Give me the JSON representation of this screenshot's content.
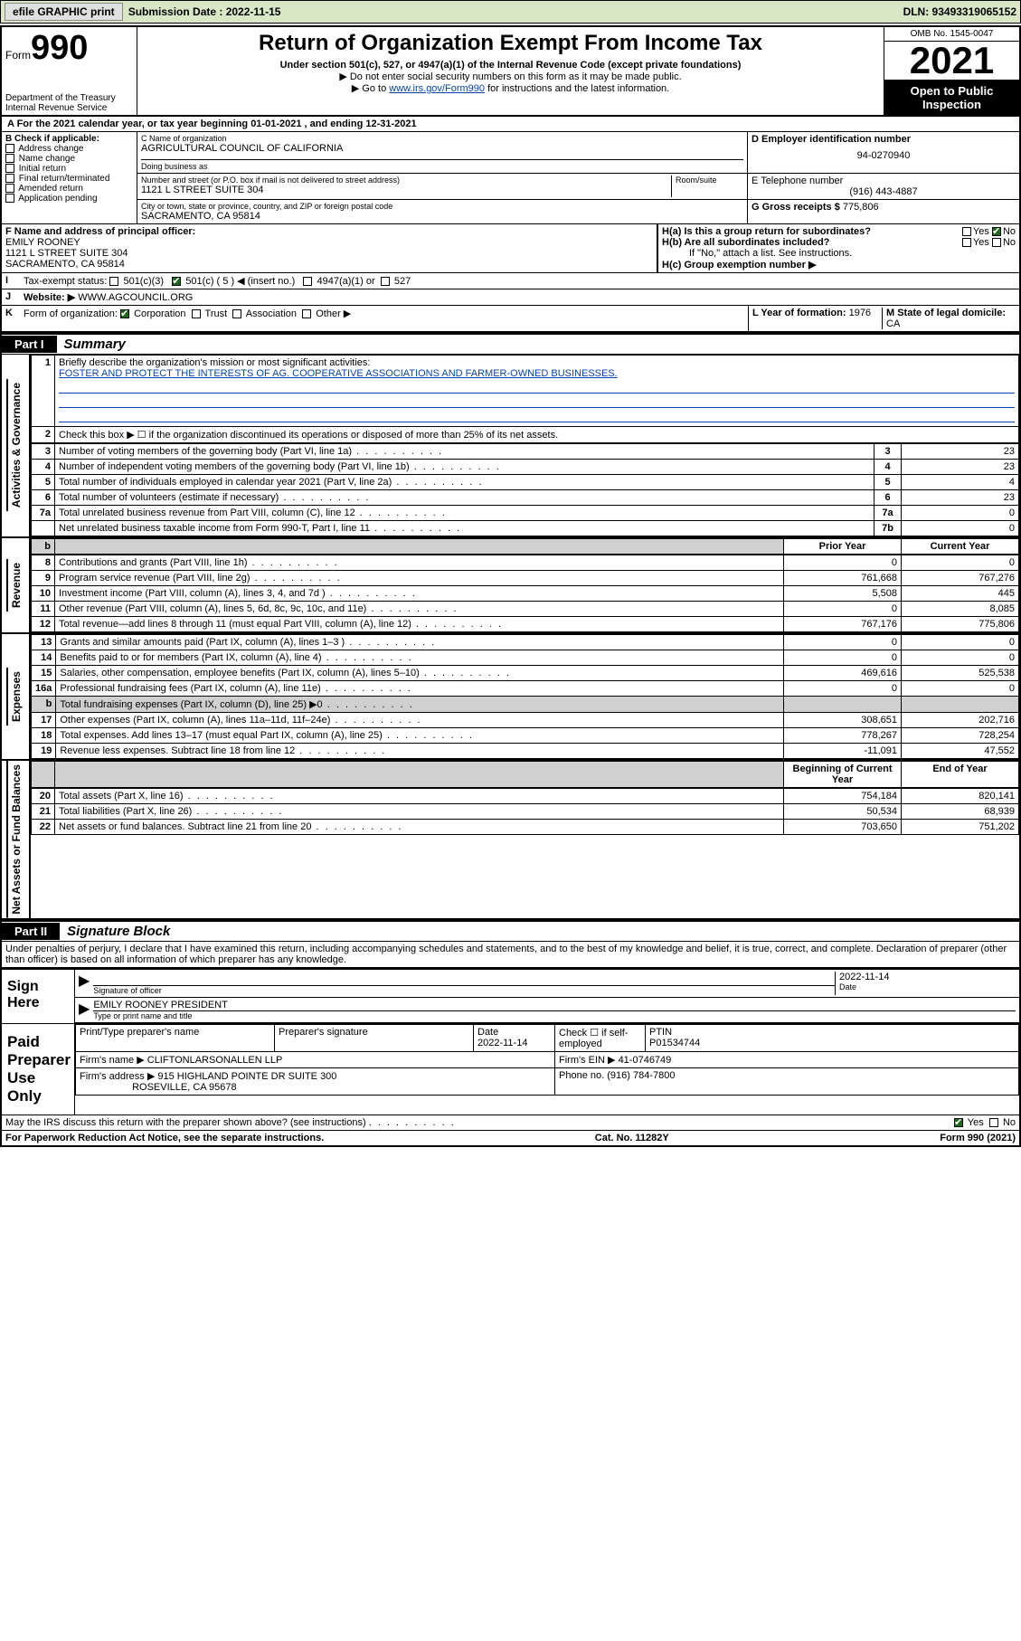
{
  "topbar": {
    "efile_label": "efile GRAPHIC print",
    "submission_label": "Submission Date : 2022-11-15",
    "dln": "DLN: 93493319065152"
  },
  "header": {
    "form_prefix": "Form",
    "form_no": "990",
    "dept": "Department of the Treasury",
    "irs": "Internal Revenue Service",
    "title": "Return of Organization Exempt From Income Tax",
    "subtitle": "Under section 501(c), 527, or 4947(a)(1) of the Internal Revenue Code (except private foundations)",
    "note1": "▶ Do not enter social security numbers on this form as it may be made public.",
    "note2_pre": "▶ Go to ",
    "note2_link": "www.irs.gov/Form990",
    "note2_post": " for instructions and the latest information.",
    "omb": "OMB No. 1545-0047",
    "taxyear": "2021",
    "inspect": "Open to Public Inspection"
  },
  "section_a": "A For the 2021 calendar year, or tax year beginning 01-01-2021    , and ending 12-31-2021",
  "col_b": {
    "header": "B Check if applicable:",
    "items": [
      "Address change",
      "Name change",
      "Initial return",
      "Final return/terminated",
      "Amended return",
      "Application pending"
    ]
  },
  "col_c": {
    "name_label": "C Name of organization",
    "name": "AGRICULTURAL COUNCIL OF CALIFORNIA",
    "dba_label": "Doing business as",
    "addr_label": "Number and street (or P.O. box if mail is not delivered to street address)",
    "room_label": "Room/suite",
    "addr": "1121 L STREET SUITE 304",
    "city_label": "City or town, state or province, country, and ZIP or foreign postal code",
    "city": "SACRAMENTO, CA  95814"
  },
  "col_d": {
    "label": "D Employer identification number",
    "value": "94-0270940"
  },
  "col_e": {
    "label": "E Telephone number",
    "value": "(916) 443-4887"
  },
  "col_g": {
    "label": "G Gross receipts $",
    "value": "775,806"
  },
  "col_f": {
    "label": "F Name and address of principal officer:",
    "name": "EMILY ROONEY",
    "addr1": "1121 L STREET SUITE 304",
    "addr2": "SACRAMENTO, CA  95814"
  },
  "col_h": {
    "ha": "H(a)  Is this a group return for subordinates?",
    "hb": "H(b)  Are all subordinates included?",
    "hb_note": "If \"No,\" attach a list. See instructions.",
    "hc": "H(c)  Group exemption number ▶",
    "yes": "Yes",
    "no": "No"
  },
  "row_i": {
    "lead": "I",
    "label": "Tax-exempt status:",
    "c3": "501(c)(3)",
    "c5": "501(c) ( 5 ) ◀ (insert no.)",
    "a1": "4947(a)(1) or",
    "s527": "527"
  },
  "row_j": {
    "lead": "J",
    "label": "Website: ▶",
    "value": "WWW.AGCOUNCIL.ORG"
  },
  "row_k": {
    "lead": "K",
    "label": "Form of organization:",
    "corp": "Corporation",
    "trust": "Trust",
    "assoc": "Association",
    "other": "Other ▶"
  },
  "row_l": {
    "label": "L Year of formation:",
    "value": "1976"
  },
  "row_m": {
    "label": "M State of legal domicile:",
    "value": "CA"
  },
  "part1": {
    "tag": "Part I",
    "title": "Summary"
  },
  "summary": {
    "line1_label": "Briefly describe the organization's mission or most significant activities:",
    "line1_text": "FOSTER AND PROTECT THE INTERESTS OF AG. COOPERATIVE ASSOCIATIONS AND FARMER-OWNED BUSINESSES.",
    "line2": "Check this box ▶ ☐  if the organization discontinued its operations or disposed of more than 25% of its net assets.",
    "rows_gov": [
      {
        "n": "3",
        "d": "Number of voting members of the governing body (Part VI, line 1a)",
        "box": "3",
        "v": "23"
      },
      {
        "n": "4",
        "d": "Number of independent voting members of the governing body (Part VI, line 1b)",
        "box": "4",
        "v": "23"
      },
      {
        "n": "5",
        "d": "Total number of individuals employed in calendar year 2021 (Part V, line 2a)",
        "box": "5",
        "v": "4"
      },
      {
        "n": "6",
        "d": "Total number of volunteers (estimate if necessary)",
        "box": "6",
        "v": "23"
      },
      {
        "n": "7a",
        "d": "Total unrelated business revenue from Part VIII, column (C), line 12",
        "box": "7a",
        "v": "0"
      },
      {
        "n": "",
        "d": "Net unrelated business taxable income from Form 990-T, Part I, line 11",
        "box": "7b",
        "v": "0"
      }
    ],
    "col_hdr_prior": "Prior Year",
    "col_hdr_current": "Current Year",
    "rows_rev": [
      {
        "n": "8",
        "d": "Contributions and grants (Part VIII, line 1h)",
        "p": "0",
        "c": "0"
      },
      {
        "n": "9",
        "d": "Program service revenue (Part VIII, line 2g)",
        "p": "761,668",
        "c": "767,276"
      },
      {
        "n": "10",
        "d": "Investment income (Part VIII, column (A), lines 3, 4, and 7d )",
        "p": "5,508",
        "c": "445"
      },
      {
        "n": "11",
        "d": "Other revenue (Part VIII, column (A), lines 5, 6d, 8c, 9c, 10c, and 11e)",
        "p": "0",
        "c": "8,085"
      },
      {
        "n": "12",
        "d": "Total revenue—add lines 8 through 11 (must equal Part VIII, column (A), line 12)",
        "p": "767,176",
        "c": "775,806"
      }
    ],
    "rows_exp": [
      {
        "n": "13",
        "d": "Grants and similar amounts paid (Part IX, column (A), lines 1–3 )",
        "p": "0",
        "c": "0"
      },
      {
        "n": "14",
        "d": "Benefits paid to or for members (Part IX, column (A), line 4)",
        "p": "0",
        "c": "0"
      },
      {
        "n": "15",
        "d": "Salaries, other compensation, employee benefits (Part IX, column (A), lines 5–10)",
        "p": "469,616",
        "c": "525,538"
      },
      {
        "n": "16a",
        "d": "Professional fundraising fees (Part IX, column (A), line 11e)",
        "p": "0",
        "c": "0"
      },
      {
        "n": "b",
        "d": "Total fundraising expenses (Part IX, column (D), line 25) ▶0",
        "p": "",
        "c": "",
        "grey": true
      },
      {
        "n": "17",
        "d": "Other expenses (Part IX, column (A), lines 11a–11d, 11f–24e)",
        "p": "308,651",
        "c": "202,716"
      },
      {
        "n": "18",
        "d": "Total expenses. Add lines 13–17 (must equal Part IX, column (A), line 25)",
        "p": "778,267",
        "c": "728,254"
      },
      {
        "n": "19",
        "d": "Revenue less expenses. Subtract line 18 from line 12",
        "p": "-11,091",
        "c": "47,552"
      }
    ],
    "col_hdr_begin": "Beginning of Current Year",
    "col_hdr_end": "End of Year",
    "rows_net": [
      {
        "n": "20",
        "d": "Total assets (Part X, line 16)",
        "p": "754,184",
        "c": "820,141"
      },
      {
        "n": "21",
        "d": "Total liabilities (Part X, line 26)",
        "p": "50,534",
        "c": "68,939"
      },
      {
        "n": "22",
        "d": "Net assets or fund balances. Subtract line 21 from line 20",
        "p": "703,650",
        "c": "751,202"
      }
    ],
    "vlabels": {
      "gov": "Activities & Governance",
      "rev": "Revenue",
      "exp": "Expenses",
      "net": "Net Assets or Fund Balances"
    }
  },
  "part2": {
    "tag": "Part II",
    "title": "Signature Block"
  },
  "penalties": "Under penalties of perjury, I declare that I have examined this return, including accompanying schedules and statements, and to the best of my knowledge and belief, it is true, correct, and complete. Declaration of preparer (other than officer) is based on all information of which preparer has any knowledge.",
  "sign": {
    "here": "Sign Here",
    "sig_officer": "Signature of officer",
    "date_label": "Date",
    "date": "2022-11-14",
    "name": "EMILY ROONEY PRESIDENT",
    "name_label": "Type or print name and title"
  },
  "prep": {
    "label": "Paid Preparer Use Only",
    "h_name": "Print/Type preparer's name",
    "h_sig": "Preparer's signature",
    "h_date": "Date",
    "date": "2022-11-14",
    "check_label": "Check ☐ if self-employed",
    "ptin_label": "PTIN",
    "ptin": "P01534744",
    "firm_name_label": "Firm's name    ▶",
    "firm_name": "CLIFTONLARSONALLEN LLP",
    "firm_ein_label": "Firm's EIN ▶",
    "firm_ein": "41-0746749",
    "firm_addr_label": "Firm's address ▶",
    "firm_addr1": "915 HIGHLAND POINTE DR SUITE 300",
    "firm_addr2": "ROSEVILLE, CA  95678",
    "phone_label": "Phone no.",
    "phone": "(916) 784-7800"
  },
  "discuss": {
    "q": "May the IRS discuss this return with the preparer shown above? (see instructions)",
    "yes": "Yes",
    "no": "No"
  },
  "footer": {
    "left": "For Paperwork Reduction Act Notice, see the separate instructions.",
    "mid": "Cat. No. 11282Y",
    "right": "Form 990 (2021)"
  },
  "colors": {
    "topbar_bg": "#d9e7c5",
    "link": "#0645ad",
    "check_green": "#1a6b1a",
    "grey": "#d0d0d0"
  }
}
